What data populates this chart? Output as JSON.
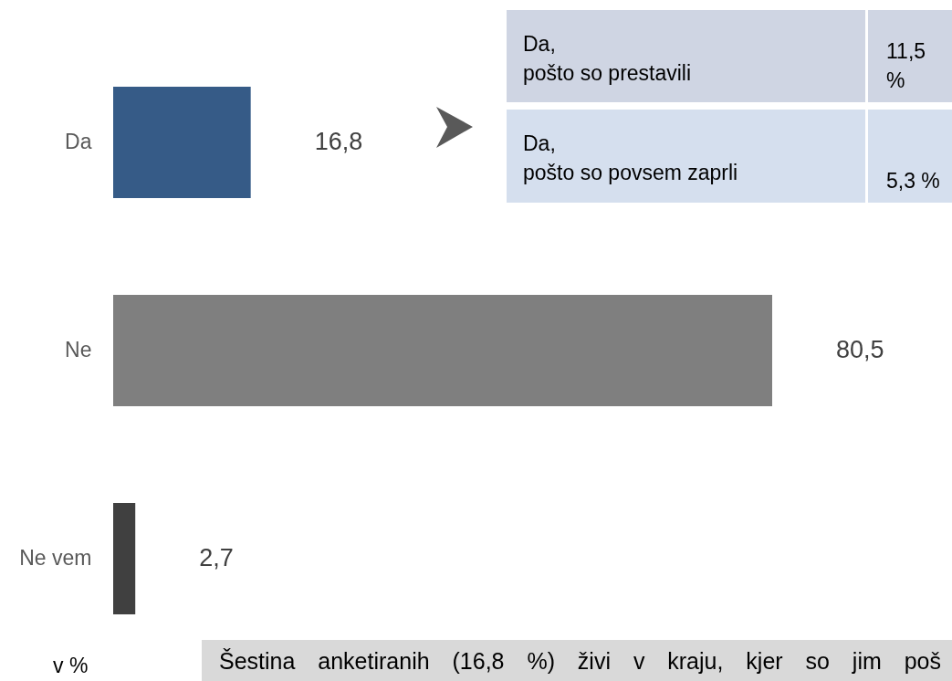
{
  "chart_data": {
    "type": "bar",
    "orientation": "horizontal",
    "categories": [
      "Da",
      "Ne",
      "Ne vem"
    ],
    "values": [
      16.8,
      80.5,
      2.7
    ],
    "colors": [
      "#365b87",
      "#7f7f7f",
      "#404040"
    ],
    "value_labels": [
      "16,8",
      "80,5",
      "2,7"
    ],
    "tick_labels": "y",
    "annotations": [
      "Da,\npošto so prestavili",
      "11,5 %",
      "Da,\npošto so povsem zaprli",
      "5,3 %",
      "v %",
      "Šestina anketiranih (16,8 %) živi v kraju, kjer so jim poš"
    ]
  }
}
